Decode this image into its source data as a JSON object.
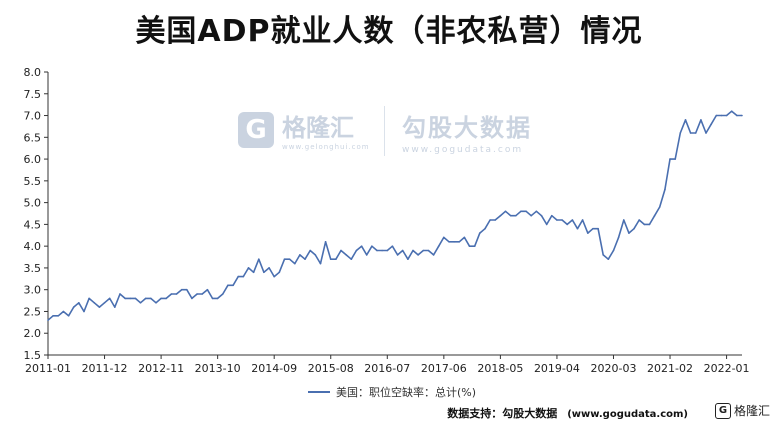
{
  "chart_data": {
    "type": "line",
    "title": "美国ADP就业人数（非农私营）情况",
    "xlabel": "",
    "ylabel": "",
    "ylim": [
      1.5,
      8.0
    ],
    "yticks": [
      "1.5",
      "2.0",
      "2.5",
      "3.0",
      "3.5",
      "4.0",
      "4.5",
      "5.0",
      "5.5",
      "6.0",
      "6.5",
      "7.0",
      "7.5",
      "8.0"
    ],
    "xticks": [
      "2011-01",
      "2011-12",
      "2012-11",
      "2013-10",
      "2014-09",
      "2015-08",
      "2016-07",
      "2017-06",
      "2018-05",
      "2019-04",
      "2020-03",
      "2021-02",
      "2022-01"
    ],
    "grid": false,
    "legend_position": "bottom",
    "series": [
      {
        "name": "美国：职位空缺率：总计(%)",
        "color": "#4a6fb0",
        "x": [
          "2011-01",
          "2011-02",
          "2011-03",
          "2011-04",
          "2011-05",
          "2011-06",
          "2011-07",
          "2011-08",
          "2011-09",
          "2011-10",
          "2011-11",
          "2011-12",
          "2012-01",
          "2012-02",
          "2012-03",
          "2012-04",
          "2012-05",
          "2012-06",
          "2012-07",
          "2012-08",
          "2012-09",
          "2012-10",
          "2012-11",
          "2012-12",
          "2013-01",
          "2013-02",
          "2013-03",
          "2013-04",
          "2013-05",
          "2013-06",
          "2013-07",
          "2013-08",
          "2013-09",
          "2013-10",
          "2013-11",
          "2013-12",
          "2014-01",
          "2014-02",
          "2014-03",
          "2014-04",
          "2014-05",
          "2014-06",
          "2014-07",
          "2014-08",
          "2014-09",
          "2014-10",
          "2014-11",
          "2014-12",
          "2015-01",
          "2015-02",
          "2015-03",
          "2015-04",
          "2015-05",
          "2015-06",
          "2015-07",
          "2015-08",
          "2015-09",
          "2015-10",
          "2015-11",
          "2015-12",
          "2016-01",
          "2016-02",
          "2016-03",
          "2016-04",
          "2016-05",
          "2016-06",
          "2016-07",
          "2016-08",
          "2016-09",
          "2016-10",
          "2016-11",
          "2016-12",
          "2017-01",
          "2017-02",
          "2017-03",
          "2017-04",
          "2017-05",
          "2017-06",
          "2017-07",
          "2017-08",
          "2017-09",
          "2017-10",
          "2017-11",
          "2017-12",
          "2018-01",
          "2018-02",
          "2018-03",
          "2018-04",
          "2018-05",
          "2018-06",
          "2018-07",
          "2018-08",
          "2018-09",
          "2018-10",
          "2018-11",
          "2018-12",
          "2019-01",
          "2019-02",
          "2019-03",
          "2019-04",
          "2019-05",
          "2019-06",
          "2019-07",
          "2019-08",
          "2019-09",
          "2019-10",
          "2019-11",
          "2019-12",
          "2020-01",
          "2020-02",
          "2020-03",
          "2020-04",
          "2020-05",
          "2020-06",
          "2020-07",
          "2020-08",
          "2020-09",
          "2020-10",
          "2020-11",
          "2020-12",
          "2021-01",
          "2021-02",
          "2021-03",
          "2021-04",
          "2021-05",
          "2021-06",
          "2021-07",
          "2021-08",
          "2021-09",
          "2021-10",
          "2021-11",
          "2021-12",
          "2022-01",
          "2022-02",
          "2022-03",
          "2022-04"
        ],
        "values": [
          2.3,
          2.4,
          2.4,
          2.5,
          2.4,
          2.6,
          2.7,
          2.5,
          2.8,
          2.7,
          2.6,
          2.7,
          2.8,
          2.6,
          2.9,
          2.8,
          2.8,
          2.8,
          2.7,
          2.8,
          2.8,
          2.7,
          2.8,
          2.8,
          2.9,
          2.9,
          3.0,
          3.0,
          2.8,
          2.9,
          2.9,
          3.0,
          2.8,
          2.8,
          2.9,
          3.1,
          3.1,
          3.3,
          3.3,
          3.5,
          3.4,
          3.7,
          3.4,
          3.5,
          3.3,
          3.4,
          3.7,
          3.7,
          3.6,
          3.8,
          3.7,
          3.9,
          3.8,
          3.6,
          4.1,
          3.7,
          3.7,
          3.9,
          3.8,
          3.7,
          3.9,
          4.0,
          3.8,
          4.0,
          3.9,
          3.9,
          3.9,
          4.0,
          3.8,
          3.9,
          3.7,
          3.9,
          3.8,
          3.9,
          3.9,
          3.8,
          4.0,
          4.2,
          4.1,
          4.1,
          4.1,
          4.2,
          4.0,
          4.0,
          4.3,
          4.4,
          4.6,
          4.6,
          4.7,
          4.8,
          4.7,
          4.7,
          4.8,
          4.8,
          4.7,
          4.8,
          4.7,
          4.5,
          4.7,
          4.6,
          4.6,
          4.5,
          4.6,
          4.4,
          4.6,
          4.3,
          4.4,
          4.4,
          3.8,
          3.7,
          3.9,
          4.2,
          4.6,
          4.3,
          4.4,
          4.6,
          4.5,
          4.5,
          4.7,
          4.9,
          5.3,
          6.0,
          6.0,
          6.6,
          6.9,
          6.6,
          6.6,
          6.9,
          6.6,
          6.8,
          7.0,
          7.0,
          7.0,
          7.1,
          7.0,
          7.0
        ]
      }
    ]
  },
  "legend": {
    "label": "美国：职位空缺率：总计(%)"
  },
  "source": {
    "label": "数据支持：勾股大数据",
    "url": "(www.gogudata.com)"
  },
  "brand": {
    "logo_letter": "G",
    "name": "格隆汇"
  },
  "watermark": {
    "left_letter": "G",
    "left_main": "格隆汇",
    "left_sub": "www.gelonghui.com",
    "right_main": "勾股大数据",
    "right_sub": "www.gogudata.com"
  }
}
